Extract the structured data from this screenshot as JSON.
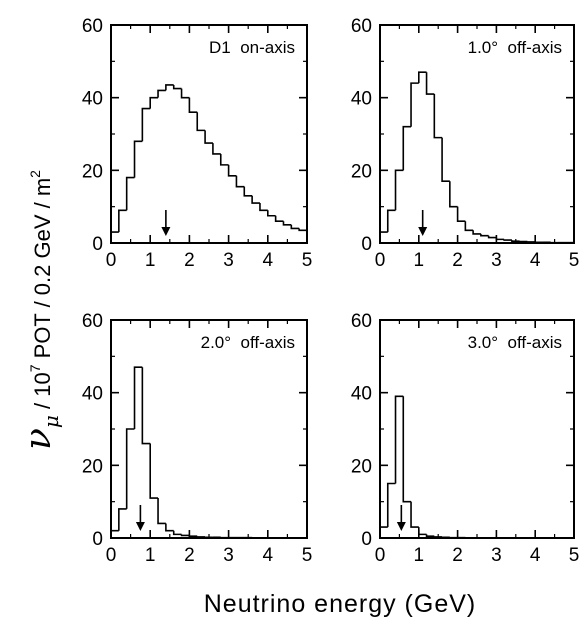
{
  "chart_data": [
    {
      "type": "histogram",
      "title": "D1  on-axis",
      "xlim": [
        0,
        5
      ],
      "ylim": [
        0,
        60
      ],
      "xticks": [
        "0",
        "1",
        "2",
        "3",
        "4",
        "5"
      ],
      "yticks": [
        "0",
        "20",
        "40",
        "60"
      ],
      "bin_width": 0.2,
      "bin_edges_start": 0.0,
      "values": [
        3,
        9,
        18,
        28,
        37,
        40,
        42,
        43.5,
        42.5,
        40,
        36,
        31,
        27.5,
        24.5,
        21.5,
        18.5,
        15.5,
        13,
        11,
        9,
        7.5,
        6,
        5,
        4,
        3.5
      ],
      "marker_energy": 1.4
    },
    {
      "type": "histogram",
      "title": "1.0°  off-axis",
      "xlim": [
        0,
        5
      ],
      "ylim": [
        0,
        60
      ],
      "xticks": [
        "0",
        "1",
        "2",
        "3",
        "4",
        "5"
      ],
      "yticks": [
        "0",
        "20",
        "40",
        "60"
      ],
      "bin_width": 0.2,
      "bin_edges_start": 0.0,
      "values": [
        3,
        9,
        20,
        32,
        44,
        47,
        41,
        29,
        17,
        10,
        6,
        3.5,
        2.5,
        2,
        1.5,
        1,
        0.8,
        0.5,
        0.4,
        0.3,
        0.2,
        0.2,
        0.1,
        0.1,
        0.1
      ],
      "marker_energy": 1.1
    },
    {
      "type": "histogram",
      "title": "2.0°  off-axis",
      "xlim": [
        0,
        5
      ],
      "ylim": [
        0,
        60
      ],
      "xticks": [
        "0",
        "1",
        "2",
        "3",
        "4",
        "5"
      ],
      "yticks": [
        "0",
        "20",
        "40",
        "60"
      ],
      "bin_width": 0.2,
      "bin_edges_start": 0.0,
      "values": [
        2,
        8,
        30,
        47,
        26,
        11,
        4,
        2,
        1,
        0.7,
        0.5,
        0.3,
        0.2,
        0.2,
        0.1,
        0.1,
        0.1,
        0.1,
        0,
        0,
        0,
        0,
        0,
        0,
        0
      ],
      "marker_energy": 0.75
    },
    {
      "type": "histogram",
      "title": "3.0°  off-axis",
      "xlim": [
        0,
        5
      ],
      "ylim": [
        0,
        60
      ],
      "xticks": [
        "0",
        "1",
        "2",
        "3",
        "4",
        "5"
      ],
      "yticks": [
        "0",
        "20",
        "40",
        "60"
      ],
      "bin_width": 0.2,
      "bin_edges_start": 0.0,
      "values": [
        3,
        15,
        39,
        10,
        3,
        1,
        0.5,
        0.3,
        0.2,
        0.1,
        0.1,
        0,
        0,
        0,
        0,
        0,
        0,
        0,
        0,
        0,
        0,
        0,
        0,
        0,
        0
      ],
      "marker_energy": 0.55
    }
  ],
  "xlabel": "Neutrino  energy  (GeV)",
  "ylabel": {
    "symbol": "ν",
    "subscript": "μ",
    "text_a": " / 10",
    "power": "7",
    "text_b": " POT / 0.2  GeV / m",
    "unit_power": "2"
  }
}
